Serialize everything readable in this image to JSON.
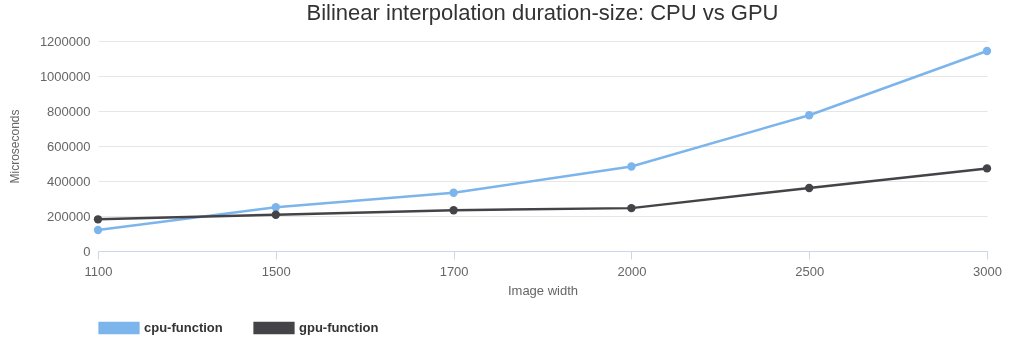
{
  "chart_data": {
    "type": "line",
    "title": "Bilinear interpolation duration-size: CPU vs GPU",
    "xlabel": "Image width",
    "ylabel": "Microseconds",
    "categories": [
      "1100",
      "1500",
      "1700",
      "2000",
      "2500",
      "3000"
    ],
    "series": [
      {
        "name": "cpu-function",
        "color": "#7cb5ec",
        "values": [
          120000,
          250000,
          333000,
          483000,
          776000,
          1143000
        ]
      },
      {
        "name": "gpu-function",
        "color": "#434348",
        "values": [
          181000,
          207000,
          233000,
          245000,
          360000,
          472000
        ]
      }
    ],
    "ylim": [
      0,
      1200000
    ],
    "yticks": [
      0,
      200000,
      400000,
      600000,
      800000,
      1000000,
      1200000
    ],
    "grid": "y",
    "legend": "bottom",
    "marker": "circle",
    "line_style": "solid"
  }
}
